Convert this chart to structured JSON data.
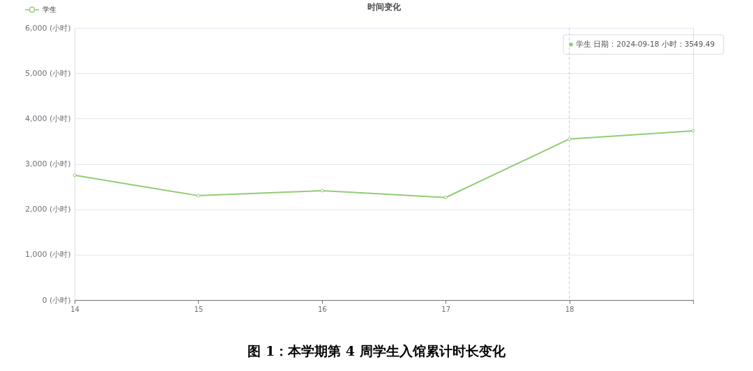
{
  "chart_data": {
    "type": "line",
    "title": "时间变化",
    "categories": [
      "14",
      "15",
      "16",
      "17",
      "18",
      null
    ],
    "series": [
      {
        "name": "学生",
        "color": "#91cc75",
        "values": [
          2750,
          2300,
          2410,
          2260,
          3549.49,
          3730
        ]
      }
    ],
    "ylim": [
      0,
      6000
    ],
    "yticks": [
      {
        "value": 0,
        "label": "0 (小时)"
      },
      {
        "value": 1000,
        "label": "1,000 (小时)"
      },
      {
        "value": 2000,
        "label": "2,000 (小时)"
      },
      {
        "value": 3000,
        "label": "3,000 (小时)"
      },
      {
        "value": 4000,
        "label": "4,000 (小时)"
      },
      {
        "value": 5000,
        "label": "5,000 (小时)"
      },
      {
        "value": 6000,
        "label": "6,000 (小时)"
      }
    ],
    "grid": "y",
    "legend": "top left",
    "marker": "circle",
    "line_style": "solid",
    "ref_lines": [
      {
        "axis": "x",
        "value": "18",
        "color": "#cccccc",
        "line_style": "dashed"
      }
    ],
    "annotations": [
      "学生 日期：2024-09-18 小时：3549.49",
      "图 1：本学期第 4 周学生入馆累计时长变化"
    ]
  }
}
